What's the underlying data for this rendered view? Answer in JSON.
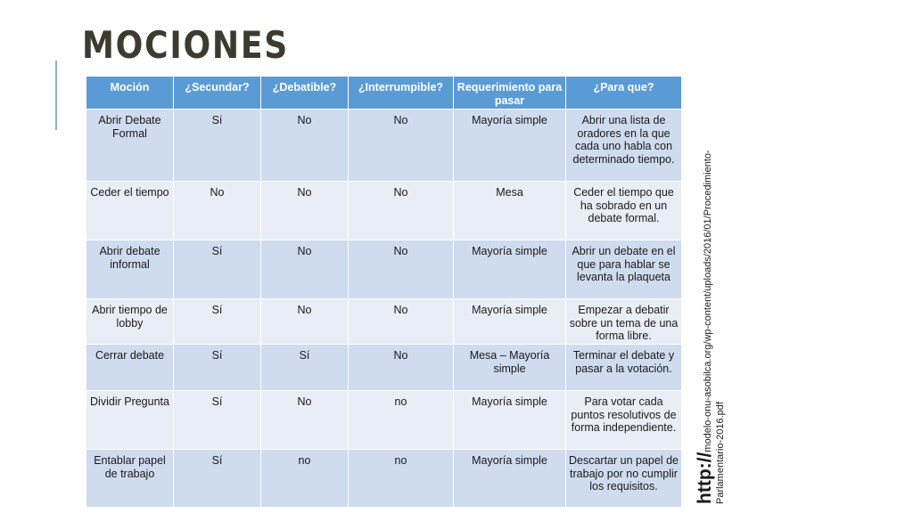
{
  "slide": {
    "title": "MOCIONES",
    "source_prefix": "http://",
    "source_line1": "modelo-onu-asobilca.org/wp-content/uploads/2016/01/Procedimiento-",
    "source_line2": "Parlamentario-2016.pdf"
  },
  "table": {
    "headers": [
      "Moción",
      "¿Secundar?",
      "¿Debatible?",
      "¿Interrumpible?",
      "Requerimiento para pasar",
      "¿Para que?"
    ],
    "rows": [
      [
        "Abrir Debate Formal",
        "Sí",
        "No",
        "No",
        "Mayoría simple",
        "Abrir una lista de oradores en la que cada uno habla con determinado tiempo."
      ],
      [
        "Ceder el tiempo",
        "No",
        "No",
        "No",
        "Mesa",
        "Ceder el tiempo que ha sobrado en un debate formal."
      ],
      [
        "Abrir debate informal",
        "Sí",
        "No",
        "No",
        "Mayoría simple",
        "Abrir un debate en el que para hablar se levanta la plaqueta"
      ],
      [
        "Abrir tiempo de lobby",
        "Sí",
        "No",
        "No",
        "Mayoría simple",
        "Empezar a debatir sobre un tema de una forma libre."
      ],
      [
        "Cerrar debate",
        "Sí",
        "Sí",
        "No",
        "Mesa – Mayoría simple",
        "Terminar el debate y pasar a la votación."
      ],
      [
        "Dividir Pregunta",
        "Sí",
        "No",
        "no",
        "Mayoría simple",
        "Para votar cada puntos resolutivos de forma independiente."
      ],
      [
        "Entablar papel de trabajo",
        "Sí",
        "no",
        "no",
        "Mayoría simple",
        "Descartar un papel de trabajo por no cumplir los requisitos."
      ]
    ]
  }
}
